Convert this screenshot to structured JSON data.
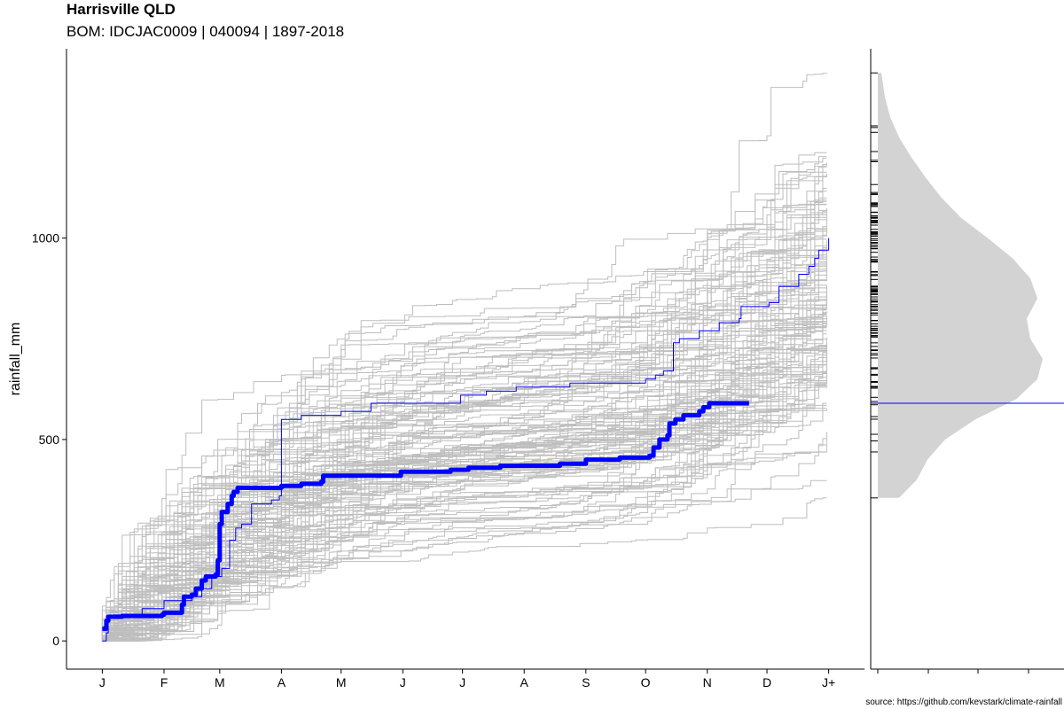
{
  "chart_data": [
    {
      "type": "line",
      "title": "Harrisville QLD",
      "subtitle": "BOM: IDCJAC0009 | 040094 | 1897-2018",
      "caption": "source: https://github.com/kevstark/climate-rainfall",
      "ylabel": "rainfall_mm",
      "xlabel": "",
      "x_tick_labels": [
        "J",
        "F",
        "M",
        "A",
        "M",
        "J",
        "J",
        "A",
        "S",
        "O",
        "N",
        "D",
        "J+"
      ],
      "x_tick_days": [
        0,
        31,
        59,
        90,
        120,
        151,
        181,
        212,
        243,
        273,
        304,
        334,
        365
      ],
      "y_ticks": [
        0,
        500,
        1000
      ],
      "xlim": [
        -18,
        383
      ],
      "ylim": [
        -70,
        1470
      ],
      "grid": false,
      "historical_year_count": 121,
      "historical_annual_totals_range": [
        355,
        1410
      ],
      "highlight_series": [
        {
          "style": "thin",
          "color": "#0000ff",
          "points": [
            [
              0,
              0
            ],
            [
              2,
              20
            ],
            [
              3,
              60
            ],
            [
              20,
              80
            ],
            [
              31,
              100
            ],
            [
              45,
              110
            ],
            [
              50,
              130
            ],
            [
              55,
              160
            ],
            [
              60,
              180
            ],
            [
              64,
              250
            ],
            [
              67,
              280
            ],
            [
              70,
              290
            ],
            [
              75,
              340
            ],
            [
              85,
              350
            ],
            [
              89,
              360
            ],
            [
              90,
              550
            ],
            [
              100,
              560
            ],
            [
              120,
              570
            ],
            [
              135,
              590
            ],
            [
              180,
              610
            ],
            [
              193,
              620
            ],
            [
              208,
              630
            ],
            [
              235,
              640
            ],
            [
              273,
              650
            ],
            [
              278,
              660
            ],
            [
              282,
              670
            ],
            [
              287,
              740
            ],
            [
              290,
              750
            ],
            [
              300,
              770
            ],
            [
              310,
              790
            ],
            [
              320,
              800
            ],
            [
              321,
              830
            ],
            [
              335,
              840
            ],
            [
              340,
              880
            ],
            [
              350,
              910
            ],
            [
              355,
              930
            ],
            [
              358,
              950
            ],
            [
              360,
              970
            ],
            [
              365,
              1000
            ]
          ]
        },
        {
          "style": "thick",
          "color": "#0000ff",
          "points": [
            [
              0,
              30
            ],
            [
              2,
              50
            ],
            [
              3,
              60
            ],
            [
              10,
              62
            ],
            [
              30,
              65
            ],
            [
              31,
              70
            ],
            [
              40,
              90
            ],
            [
              41,
              110
            ],
            [
              45,
              115
            ],
            [
              47,
              130
            ],
            [
              50,
              150
            ],
            [
              52,
              160
            ],
            [
              57,
              165
            ],
            [
              58,
              200
            ],
            [
              59,
              290
            ],
            [
              60,
              320
            ],
            [
              63,
              340
            ],
            [
              65,
              360
            ],
            [
              66,
              370
            ],
            [
              68,
              380
            ],
            [
              90,
              385
            ],
            [
              100,
              390
            ],
            [
              110,
              395
            ],
            [
              111,
              410
            ],
            [
              150,
              420
            ],
            [
              175,
              425
            ],
            [
              184,
              430
            ],
            [
              200,
              435
            ],
            [
              230,
              440
            ],
            [
              243,
              450
            ],
            [
              260,
              455
            ],
            [
              275,
              460
            ],
            [
              277,
              480
            ],
            [
              280,
              500
            ],
            [
              284,
              510
            ],
            [
              285,
              540
            ],
            [
              288,
              550
            ],
            [
              292,
              560
            ],
            [
              300,
              570
            ],
            [
              302,
              580
            ],
            [
              305,
              590
            ],
            [
              325,
              590
            ]
          ]
        }
      ],
      "side_panel": {
        "type": "density",
        "fill": "#d3d3d3",
        "current_total_line": 590,
        "density_profile": [
          [
            355,
            0.12
          ],
          [
            400,
            0.22
          ],
          [
            450,
            0.28
          ],
          [
            500,
            0.38
          ],
          [
            550,
            0.55
          ],
          [
            600,
            0.78
          ],
          [
            650,
            0.9
          ],
          [
            700,
            0.93
          ],
          [
            750,
            0.86
          ],
          [
            800,
            0.84
          ],
          [
            850,
            0.9
          ],
          [
            900,
            0.86
          ],
          [
            950,
            0.76
          ],
          [
            1000,
            0.62
          ],
          [
            1050,
            0.47
          ],
          [
            1100,
            0.36
          ],
          [
            1150,
            0.27
          ],
          [
            1200,
            0.19
          ],
          [
            1250,
            0.12
          ],
          [
            1300,
            0.07
          ],
          [
            1350,
            0.04
          ],
          [
            1410,
            0.02
          ]
        ]
      }
    }
  ]
}
